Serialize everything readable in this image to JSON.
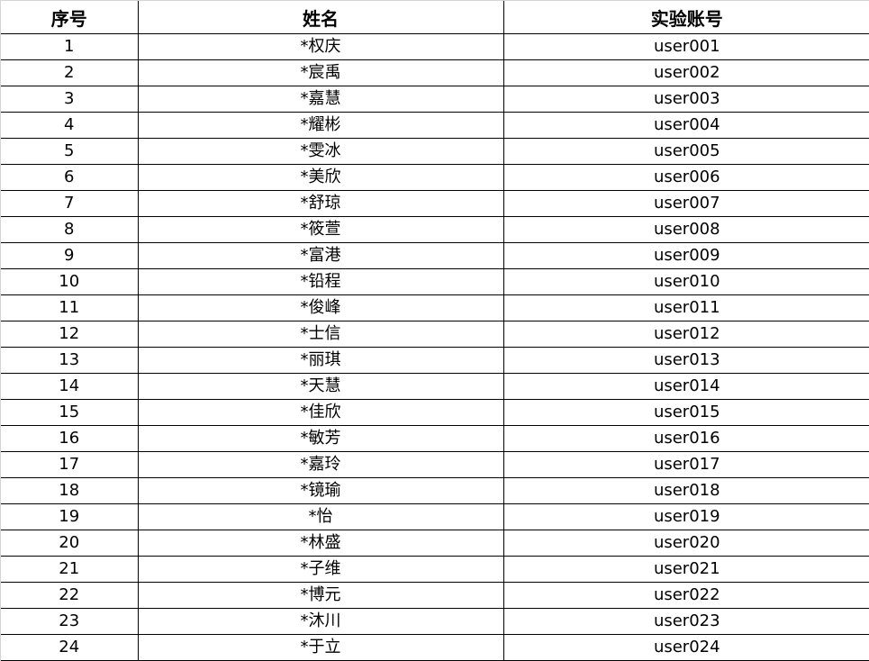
{
  "table": {
    "headers": [
      "序号",
      "姓名",
      "实验账号"
    ],
    "rows": [
      [
        "1",
        "*权庆",
        "user001"
      ],
      [
        "2",
        "*宸禹",
        "user002"
      ],
      [
        "3",
        "*嘉慧",
        "user003"
      ],
      [
        "4",
        "*耀彬",
        "user004"
      ],
      [
        "5",
        "*雯冰",
        "user005"
      ],
      [
        "6",
        "*美欣",
        "user006"
      ],
      [
        "7",
        "*舒琼",
        "user007"
      ],
      [
        "8",
        "*筱萱",
        "user008"
      ],
      [
        "9",
        "*富港",
        "user009"
      ],
      [
        "10",
        "*铅程",
        "user010"
      ],
      [
        "11",
        "*俊峰",
        "user011"
      ],
      [
        "12",
        "*士信",
        "user012"
      ],
      [
        "13",
        "*丽琪",
        "user013"
      ],
      [
        "14",
        "*天慧",
        "user014"
      ],
      [
        "15",
        "*佳欣",
        "user015"
      ],
      [
        "16",
        "*敏芳",
        "user016"
      ],
      [
        "17",
        "*嘉玲",
        "user017"
      ],
      [
        "18",
        "*镜瑜",
        "user018"
      ],
      [
        "19",
        "*怡",
        "user019"
      ],
      [
        "20",
        "*林盛",
        "user020"
      ],
      [
        "21",
        "*子维",
        "user021"
      ],
      [
        "22",
        "*博元",
        "user022"
      ],
      [
        "23",
        "*沐川",
        "user023"
      ],
      [
        "24",
        "*于立",
        "user024"
      ]
    ]
  }
}
